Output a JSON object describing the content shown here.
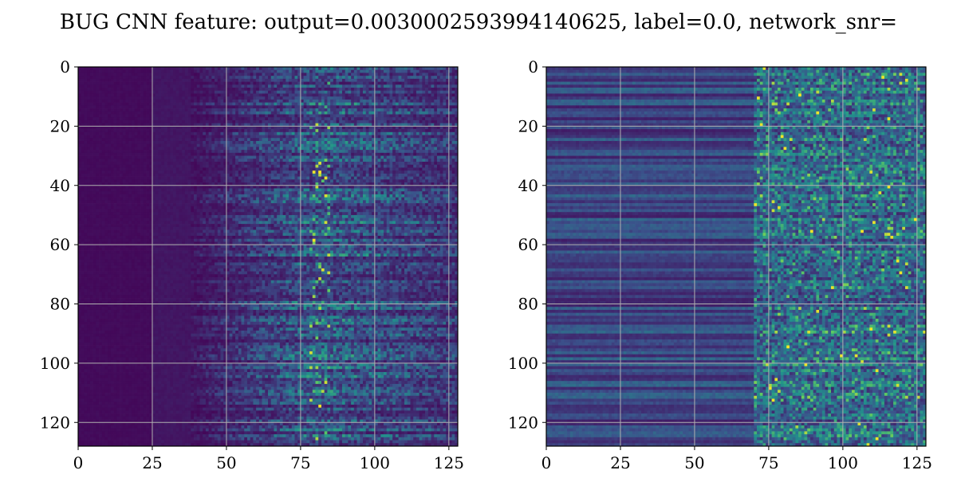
{
  "title": "BUG CNN feature: output=0.0030002593994140625, label=0.0, network_snr=",
  "colormap": [
    "#440154",
    "#3b528b",
    "#21918c",
    "#5ec962",
    "#fde725"
  ],
  "gridline_color": "#b0b0b0",
  "chart_data": [
    {
      "type": "heatmap",
      "name": "left-panel",
      "shape": [
        128,
        128
      ],
      "xlim": [
        0,
        128
      ],
      "ylim": [
        128,
        0
      ],
      "xticks": [
        0,
        25,
        50,
        75,
        100,
        125
      ],
      "yticks": [
        0,
        20,
        40,
        60,
        80,
        100,
        120
      ],
      "grid": true,
      "value_range": [
        0,
        1
      ],
      "profile": {
        "dark_cols": [
          0,
          25
        ],
        "rise_start_col": 38,
        "peak_col": 81,
        "peak_value": 0.6,
        "tail_value": 0.18
      }
    },
    {
      "type": "heatmap",
      "name": "right-panel",
      "shape": [
        128,
        128
      ],
      "xlim": [
        0,
        128
      ],
      "ylim": [
        128,
        0
      ],
      "xticks": [
        0,
        25,
        50,
        75,
        100,
        125
      ],
      "yticks": [
        0,
        20,
        40,
        60,
        80,
        100,
        120
      ],
      "grid": true,
      "value_range": [
        0,
        1
      ],
      "profile": {
        "left_band_value": 0.22,
        "rise_start_col": 70,
        "high_region_value": 0.35
      }
    }
  ]
}
